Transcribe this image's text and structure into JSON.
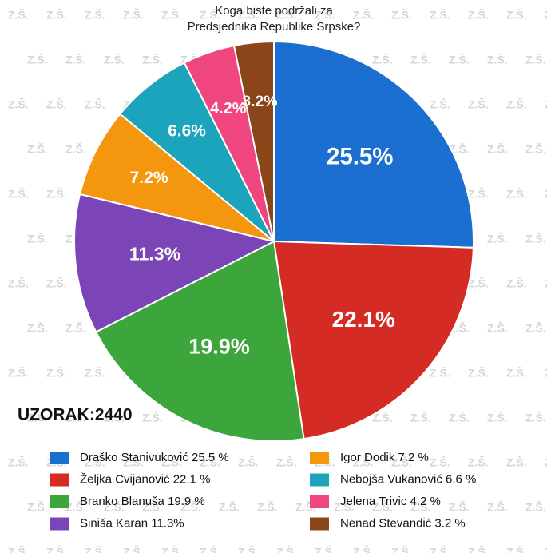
{
  "chart_data": {
    "type": "pie",
    "title_lines": [
      "Koga biste podržali za",
      "Predsjednika Republike Srpske?"
    ],
    "annotation": "UZORAK:2440",
    "watermark": "Z.Š.",
    "categories": [
      "Draško Stanivuković 25.5 %",
      "Željka Cvijanović 22.1 %",
      "Branko Blanuša 19.9 %",
      "Siniša Karan 11.3%",
      "Igor Dodik 7.2 %",
      "Nebojša Vukanović 6.6 %",
      "Jelena Trivic 4.2 %",
      "Nenad Stevandić 3.2 %"
    ],
    "values": [
      25.5,
      22.1,
      19.9,
      11.3,
      7.2,
      6.6,
      4.2,
      3.2
    ],
    "value_labels": [
      "25.5%",
      "22.1%",
      "19.9%",
      "11.3%",
      "7.2%",
      "6.6%",
      "4.2%",
      "3.2%"
    ],
    "colors": [
      "#1b6fd1",
      "#d42b25",
      "#3ca53b",
      "#7c45b7",
      "#f5960f",
      "#1ca4bd",
      "#ef467f",
      "#8a4619"
    ]
  }
}
